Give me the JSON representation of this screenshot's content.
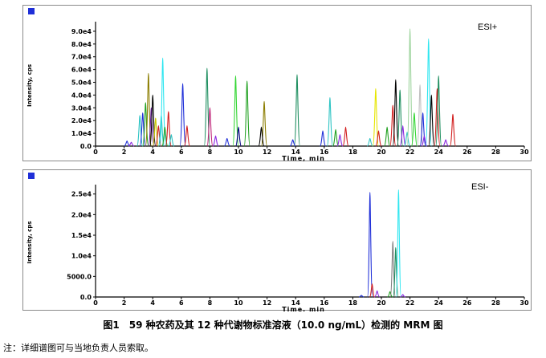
{
  "caption": "图1　59 种农药及其 12 种代谢物标准溶液（10.0 ng/mL）检测的 MRM 图",
  "note": "注：详细谱图可与当地负责人员索取。",
  "chart_data": [
    {
      "type": "line",
      "mode_label": "ESI+",
      "xlabel": "Time, min",
      "ylabel": "Intensity, cps",
      "xlim": [
        0,
        30
      ],
      "ylim": [
        0,
        95000
      ],
      "x_ticks": [
        0,
        2,
        4,
        6,
        8,
        10,
        12,
        14,
        16,
        18,
        20,
        22,
        24,
        26,
        28,
        30
      ],
      "y_ticks": [
        {
          "value": 0,
          "label": "0.0"
        },
        {
          "value": 10000,
          "label": "1.0e4"
        },
        {
          "value": 20000,
          "label": "2.0e4"
        },
        {
          "value": 30000,
          "label": "3.0e4"
        },
        {
          "value": 40000,
          "label": "4.0e4"
        },
        {
          "value": 50000,
          "label": "5.0e4"
        },
        {
          "value": 60000,
          "label": "6.0e4"
        },
        {
          "value": 70000,
          "label": "7.0e4"
        },
        {
          "value": 80000,
          "label": "8.0e4"
        },
        {
          "value": 90000,
          "label": "9.0e4"
        }
      ],
      "peaks": [
        {
          "t": 2.2,
          "h": 4000,
          "color": "#1f2fd8"
        },
        {
          "t": 2.5,
          "h": 3000,
          "color": "#8b2be2"
        },
        {
          "t": 3.1,
          "h": 24000,
          "color": "#2ec4c4"
        },
        {
          "t": 3.3,
          "h": 26000,
          "color": "#1f2fd8"
        },
        {
          "t": 3.5,
          "h": 34000,
          "color": "#1fa01f"
        },
        {
          "t": 3.7,
          "h": 57000,
          "color": "#8b7d00"
        },
        {
          "t": 3.9,
          "h": 30000,
          "color": "#6b1f9e"
        },
        {
          "t": 4.0,
          "h": 40000,
          "color": "#000000"
        },
        {
          "t": 4.2,
          "h": 22000,
          "color": "#c8c800"
        },
        {
          "t": 4.4,
          "h": 16000,
          "color": "#d21f1f"
        },
        {
          "t": 4.6,
          "h": 24000,
          "color": "#2ec4c4"
        },
        {
          "t": 4.7,
          "h": 69000,
          "color": "#2ee6f0"
        },
        {
          "t": 4.85,
          "h": 15000,
          "color": "#1fa01f"
        },
        {
          "t": 5.1,
          "h": 27000,
          "color": "#d21f1f"
        },
        {
          "t": 5.3,
          "h": 9000,
          "color": "#2ec4c4"
        },
        {
          "t": 6.1,
          "h": 49000,
          "color": "#1f2fd8"
        },
        {
          "t": 6.4,
          "h": 16000,
          "color": "#d21f1f"
        },
        {
          "t": 7.8,
          "h": 61000,
          "color": "#1f8f60"
        },
        {
          "t": 8.0,
          "h": 30000,
          "color": "#c0267a"
        },
        {
          "t": 8.4,
          "h": 8000,
          "color": "#8b2be2"
        },
        {
          "t": 9.2,
          "h": 6000,
          "color": "#1f2fd8"
        },
        {
          "t": 9.8,
          "h": 55000,
          "color": "#33d633"
        },
        {
          "t": 10.0,
          "h": 15000,
          "color": "#000080"
        },
        {
          "t": 10.6,
          "h": 51000,
          "color": "#1fa01f"
        },
        {
          "t": 11.8,
          "h": 35000,
          "color": "#8b7d00"
        },
        {
          "t": 11.6,
          "h": 15000,
          "color": "#000000"
        },
        {
          "t": 14.1,
          "h": 56000,
          "color": "#1f8f60"
        },
        {
          "t": 13.8,
          "h": 5000,
          "color": "#1f2fd8"
        },
        {
          "t": 15.9,
          "h": 12000,
          "color": "#1f2fd8"
        },
        {
          "t": 16.4,
          "h": 38000,
          "color": "#2ec4c4"
        },
        {
          "t": 16.8,
          "h": 13000,
          "color": "#1fa01f"
        },
        {
          "t": 17.1,
          "h": 9000,
          "color": "#8b2be2"
        },
        {
          "t": 17.5,
          "h": 15000,
          "color": "#d21f1f"
        },
        {
          "t": 19.2,
          "h": 6000,
          "color": "#2ec4c4"
        },
        {
          "t": 19.6,
          "h": 45000,
          "color": "#e6e600"
        },
        {
          "t": 19.8,
          "h": 12000,
          "color": "#d21f1f"
        },
        {
          "t": 20.4,
          "h": 15000,
          "color": "#1fa01f"
        },
        {
          "t": 20.8,
          "h": 32000,
          "color": "#d21f1f"
        },
        {
          "t": 21.0,
          "h": 52000,
          "color": "#000000"
        },
        {
          "t": 21.3,
          "h": 44000,
          "color": "#1f8f60"
        },
        {
          "t": 21.5,
          "h": 16000,
          "color": "#8b2be2"
        },
        {
          "t": 21.8,
          "h": 11000,
          "color": "#2ec4c4"
        },
        {
          "t": 22.0,
          "h": 92000,
          "color": "#9ed49e"
        },
        {
          "t": 22.3,
          "h": 26000,
          "color": "#33d633"
        },
        {
          "t": 22.7,
          "h": 48000,
          "color": "#c0c0c0"
        },
        {
          "t": 22.9,
          "h": 26000,
          "color": "#1f2fd8"
        },
        {
          "t": 23.0,
          "h": 8000,
          "color": "#8b2be2"
        },
        {
          "t": 23.3,
          "h": 84000,
          "color": "#2ee6f0"
        },
        {
          "t": 23.5,
          "h": 40000,
          "color": "#000000"
        },
        {
          "t": 23.9,
          "h": 45000,
          "color": "#d21f1f"
        },
        {
          "t": 24.0,
          "h": 55000,
          "color": "#1f8f60"
        },
        {
          "t": 24.5,
          "h": 5000,
          "color": "#8b2be2"
        },
        {
          "t": 25.0,
          "h": 25000,
          "color": "#d21f1f"
        }
      ]
    },
    {
      "type": "line",
      "mode_label": "ESI-",
      "xlabel": "Time, min",
      "ylabel": "Intensity, cps",
      "xlim": [
        0,
        30
      ],
      "ylim": [
        0,
        26500
      ],
      "x_ticks": [
        0,
        2,
        4,
        6,
        8,
        10,
        12,
        14,
        16,
        18,
        20,
        22,
        24,
        26,
        28,
        30
      ],
      "y_ticks": [
        {
          "value": 0,
          "label": "0.0"
        },
        {
          "value": 5000,
          "label": "5000.0"
        },
        {
          "value": 10000,
          "label": "1.0e4"
        },
        {
          "value": 15000,
          "label": "1.5e4"
        },
        {
          "value": 20000,
          "label": "2.0e4"
        },
        {
          "value": 25000,
          "label": "2.5e4"
        }
      ],
      "peaks": [
        {
          "t": 18.6,
          "h": 400,
          "color": "#1f2fd8"
        },
        {
          "t": 19.2,
          "h": 25400,
          "color": "#1f2fd8"
        },
        {
          "t": 19.35,
          "h": 3200,
          "color": "#d21f1f"
        },
        {
          "t": 19.7,
          "h": 1500,
          "color": "#8b2be2"
        },
        {
          "t": 20.6,
          "h": 1300,
          "color": "#1fa01f"
        },
        {
          "t": 20.8,
          "h": 13500,
          "color": "#808080"
        },
        {
          "t": 21.0,
          "h": 12000,
          "color": "#1f8f60"
        },
        {
          "t": 21.2,
          "h": 26000,
          "color": "#2ee6f0"
        },
        {
          "t": 21.5,
          "h": 600,
          "color": "#8b2be2"
        }
      ]
    }
  ]
}
